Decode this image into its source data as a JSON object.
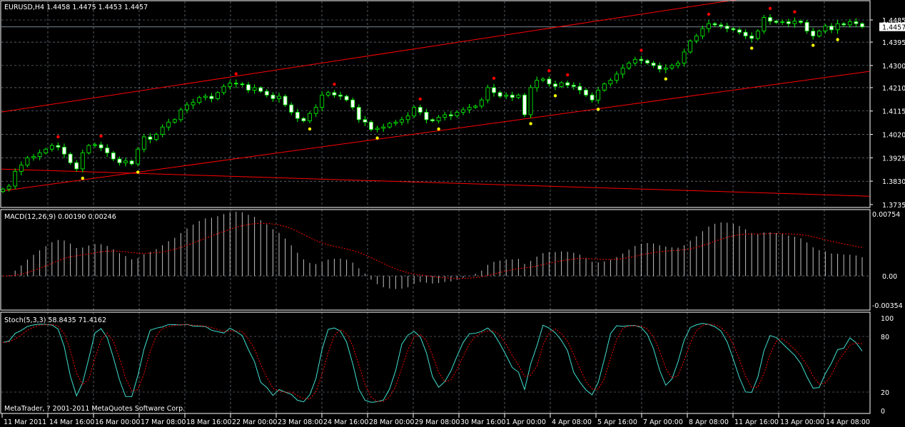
{
  "header": {
    "symbol": "EURUSD,H4",
    "ohlc": "1.4458 1.4475 1.4453 1.4457"
  },
  "macd_panel": {
    "label": "MACD(12,26,9) 0.00190 0.00246",
    "scale": [
      "0.00754",
      "0.00",
      "-0.00354"
    ]
  },
  "stoch_panel": {
    "label": "Stoch(5,3,3) 58.8435 71.4162",
    "scale": [
      "100",
      "80",
      "20",
      "0"
    ]
  },
  "copyright": "MetaTrader, ? 2001-2011 MetaQuotes Software Corp.",
  "price_scale": [
    "1.4485",
    "1.4395",
    "1.4300",
    "1.4210",
    "1.4115",
    "1.4020",
    "1.3925",
    "1.3830",
    "1.3735"
  ],
  "current_price": "1.4457",
  "time_labels": [
    "11 Mar 2011",
    "14 Mar 16:00",
    "16 Mar 00:00",
    "17 Mar 08:00",
    "18 Mar 16:00",
    "22 Mar 00:00",
    "23 Mar 08:00",
    "24 Mar 16:00",
    "28 Mar 00:00",
    "29 Mar 08:00",
    "30 Mar 16:00",
    "1 Apr 00:00",
    "4 Apr 08:00",
    "5 Apr 16:00",
    "7 Apr 00:00",
    "8 Apr 08:00",
    "11 Apr 16:00",
    "13 Apr 00:00",
    "14 Apr 08:00"
  ],
  "colors": {
    "background": "#000000",
    "bull": "#00ff00",
    "bear_body": "#ffffff",
    "trendline": "#ff0000",
    "grid": "#8a9aa8",
    "stoch_main": "#40e0d0",
    "stoch_signal": "#ff0000",
    "fractal_up": "#ff0000",
    "fractal_down": "#ffff00"
  },
  "chart_data": {
    "type": "candlestick",
    "timeframe": "H4",
    "ylim": [
      1.3735,
      1.4485
    ],
    "grid": true,
    "close": [
      1.3798,
      1.381,
      1.387,
      1.3895,
      1.3925,
      1.393,
      1.3945,
      1.396,
      1.3975,
      1.3968,
      1.394,
      1.3905,
      1.388,
      1.3945,
      1.3975,
      1.3978,
      1.3965,
      1.3945,
      1.392,
      1.3905,
      1.3912,
      1.39,
      1.396,
      1.401,
      1.4,
      1.402,
      1.405,
      1.407,
      1.408,
      1.412,
      1.414,
      1.415,
      1.417,
      1.4175,
      1.4165,
      1.419,
      1.4215,
      1.4228,
      1.4225,
      1.4222,
      1.42,
      1.421,
      1.4195,
      1.418,
      1.4165,
      1.4175,
      1.414,
      1.411,
      1.4085,
      1.4075,
      1.4105,
      1.413,
      1.418,
      1.419,
      1.418,
      1.4175,
      1.416,
      1.413,
      1.408,
      1.407,
      1.404,
      1.4045,
      1.405,
      1.4065,
      1.407,
      1.408,
      1.4095,
      1.413,
      1.411,
      1.408,
      1.4075,
      1.409,
      1.41,
      1.4095,
      1.411,
      1.412,
      1.413,
      1.4135,
      1.416,
      1.421,
      1.419,
      1.4175,
      1.418,
      1.417,
      1.418,
      1.41,
      1.421,
      1.424,
      1.4245,
      1.4225,
      1.4215,
      1.423,
      1.422,
      1.4215,
      1.42,
      1.418,
      1.416,
      1.42,
      1.4225,
      1.424,
      1.4265,
      1.429,
      1.431,
      1.4325,
      1.432,
      1.431,
      1.43,
      1.4285,
      1.429,
      1.43,
      1.431,
      1.4355,
      1.44,
      1.442,
      1.445,
      1.447,
      1.4465,
      1.446,
      1.445,
      1.4445,
      1.4435,
      1.442,
      1.441,
      1.444,
      1.4495,
      1.448,
      1.4475,
      1.4478,
      1.447,
      1.448,
      1.4475,
      1.444,
      1.442,
      1.444,
      1.446,
      1.4445,
      1.447,
      1.4465,
      1.4478,
      1.447,
      1.4457
    ],
    "trendlines": [
      {
        "from_price": 1.4111,
        "to_price": 1.465
      },
      {
        "from_price": 1.379,
        "to_price": 1.4276
      },
      {
        "from_price": 1.3879,
        "to_price": 1.3769
      }
    ],
    "macd": {
      "fast": 12,
      "slow": 26,
      "signal": 9,
      "ylim": [
        -0.00354,
        0.00754
      ]
    },
    "stochastic": {
      "k": 5,
      "d": 3,
      "slowing": 3,
      "ylim": [
        0,
        100
      ],
      "levels": [
        20,
        80
      ]
    }
  }
}
